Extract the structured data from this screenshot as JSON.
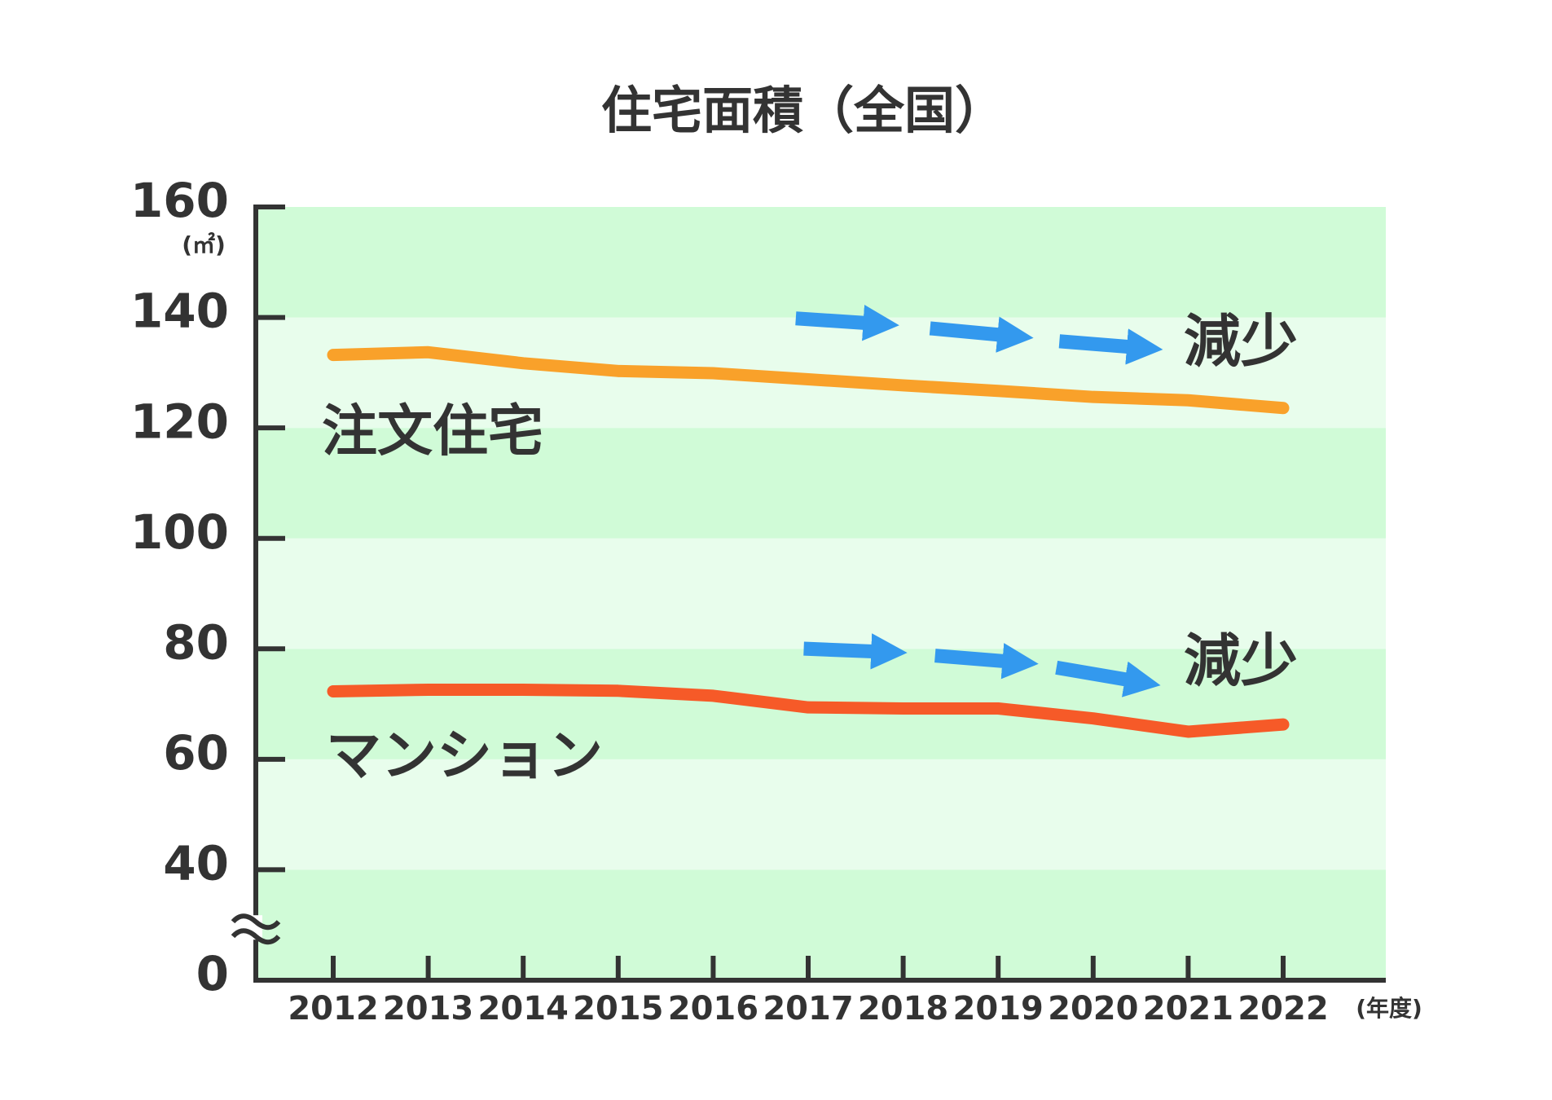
{
  "chart_data": {
    "type": "line",
    "title": "住宅面積（全国）",
    "categories": [
      "2012",
      "2013",
      "2014",
      "2015",
      "2016",
      "2017",
      "2018",
      "2019",
      "2020",
      "2021",
      "2022"
    ],
    "series": [
      {
        "name": "注文住宅",
        "color": "#f9a12a",
        "values": [
          133.2,
          133.7,
          131.7,
          130.3,
          129.9,
          128.8,
          127.7,
          126.7,
          125.6,
          125.0,
          123.6
        ]
      },
      {
        "name": "マンション",
        "color": "#f65a28",
        "values": [
          72.3,
          72.6,
          72.6,
          72.4,
          71.5,
          69.4,
          69.2,
          69.2,
          67.4,
          65.0,
          66.3
        ]
      }
    ],
    "ylim": [
      0,
      160
    ],
    "yticks": [
      0,
      40,
      60,
      80,
      100,
      120,
      140,
      160
    ],
    "axis_break": true,
    "y_unit": "(㎡)",
    "x_unit": "(年度)",
    "annotations": [
      {
        "text": "減少",
        "color": "#3399ee"
      },
      {
        "text": "減少",
        "color": "#3399ee"
      }
    ]
  }
}
